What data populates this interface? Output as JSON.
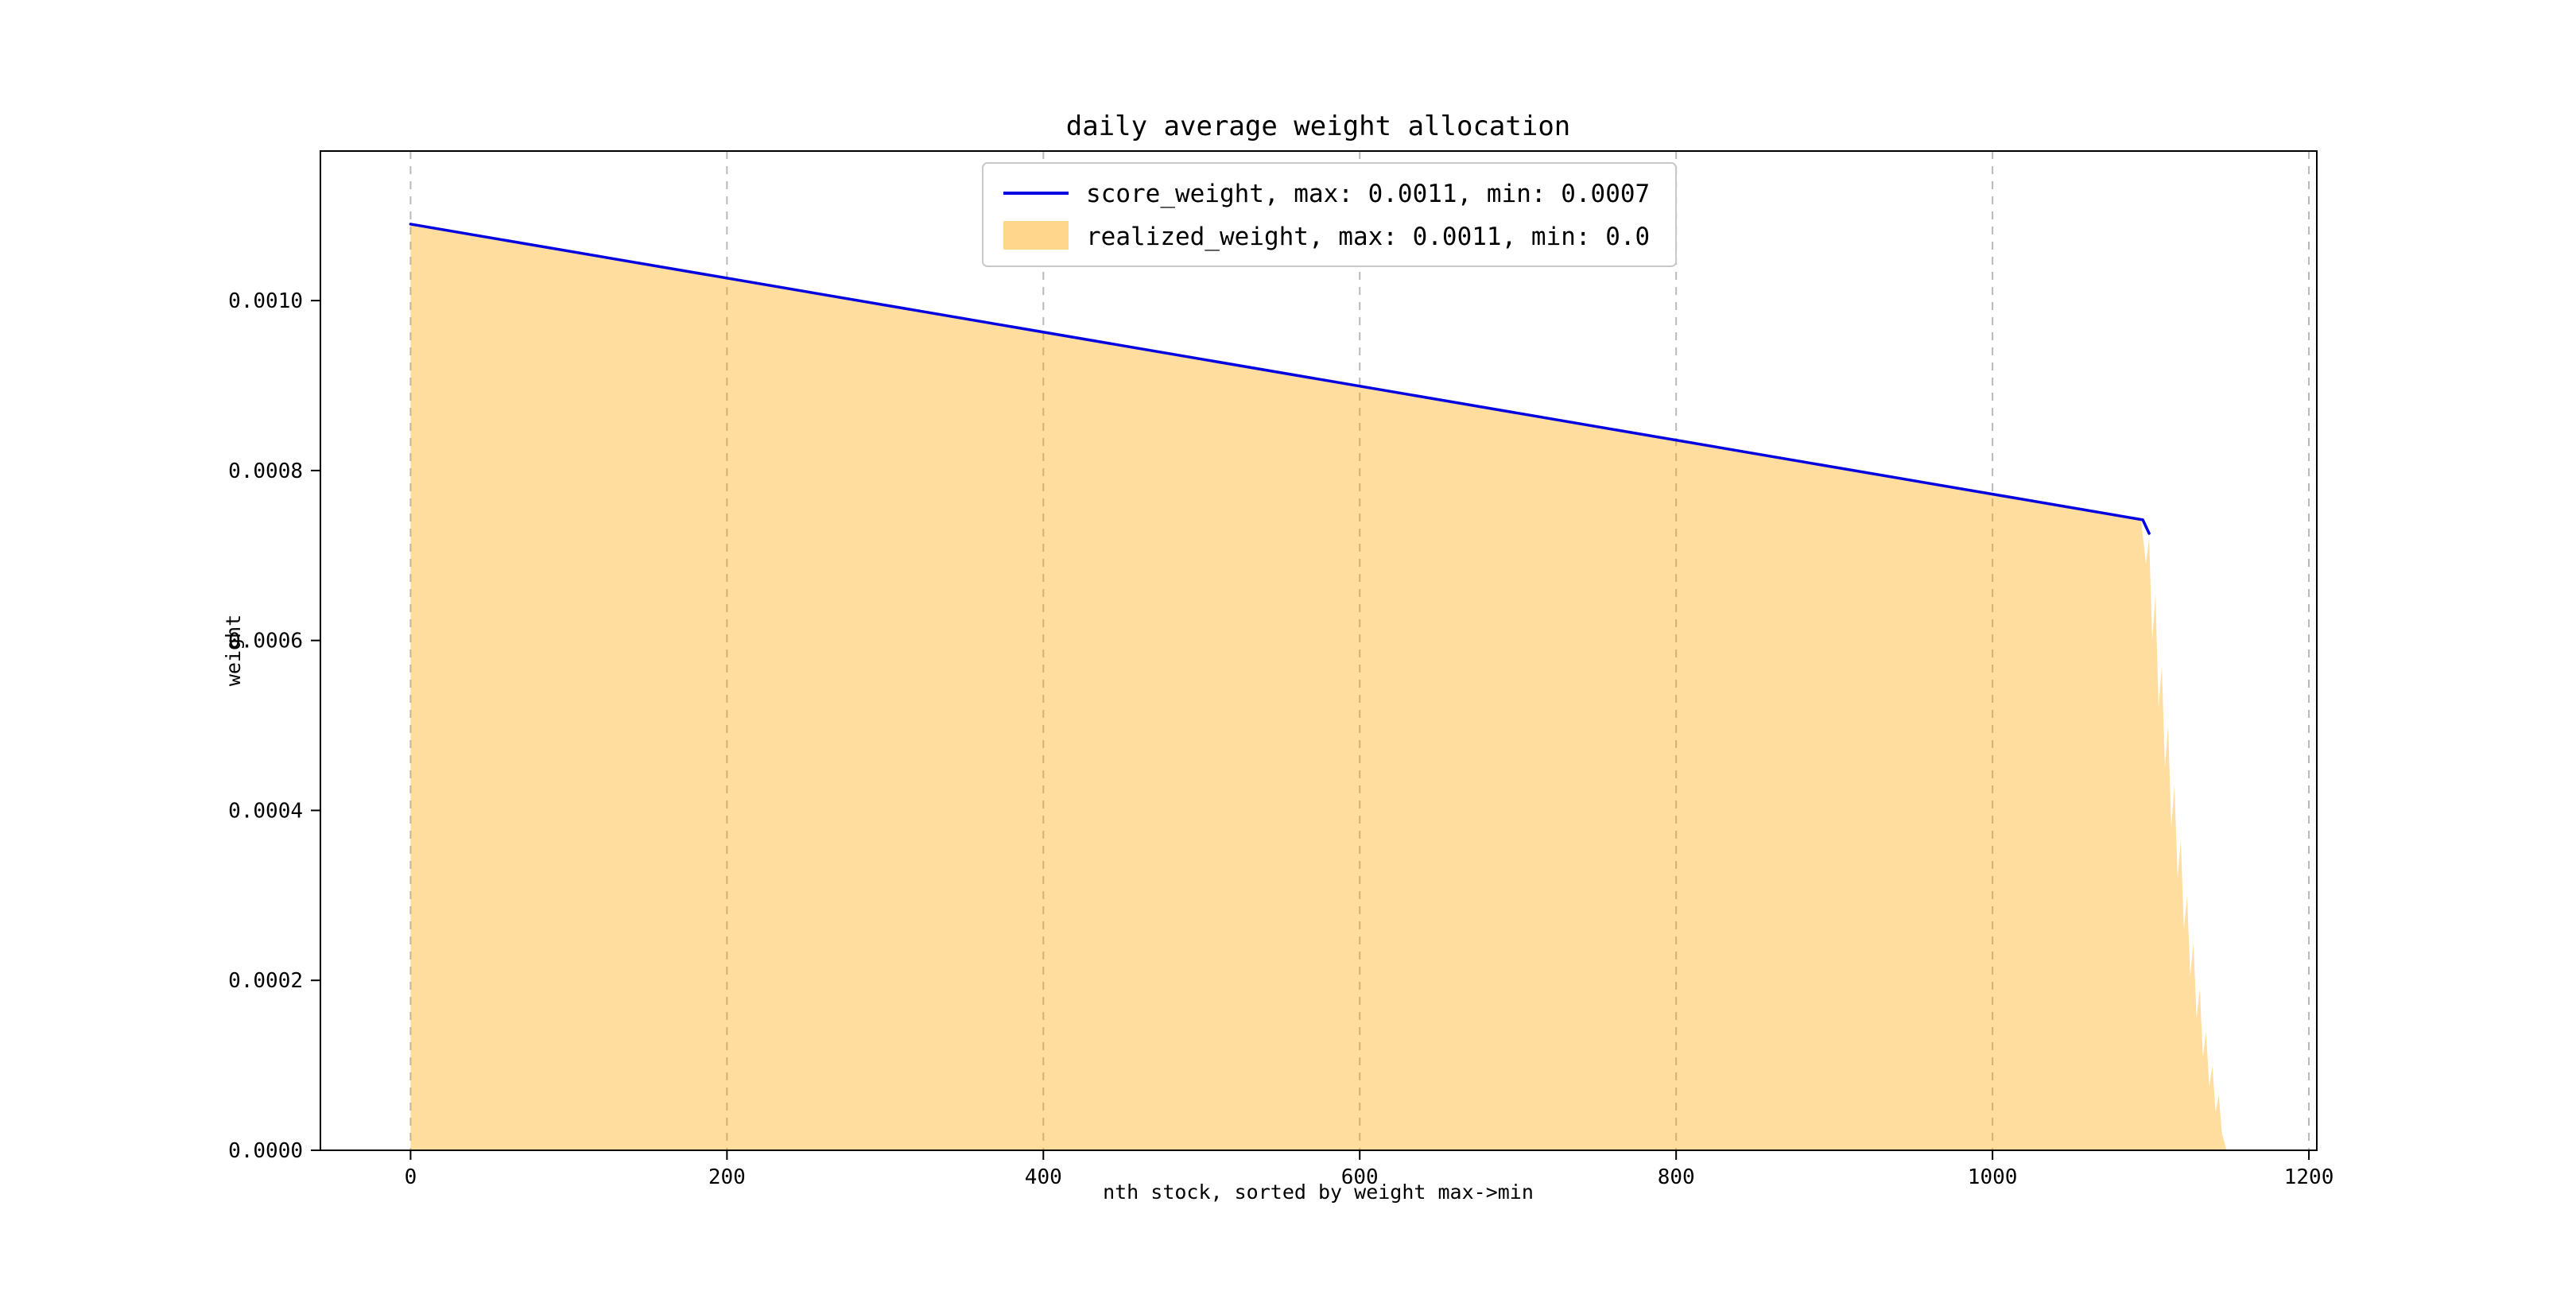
{
  "page": {
    "background": "#ffffff"
  },
  "chart_data": {
    "type": "area",
    "title": "daily average weight allocation",
    "xlabel": "nth stock, sorted by weight max->min",
    "ylabel": "weight",
    "xlim": [
      -57,
      1205
    ],
    "ylim": [
      0,
      0.001176
    ],
    "grid": "vertical-dashed",
    "grid_color": "#b9b9b9",
    "legend_position": "upper center",
    "x_ticks": [
      0,
      200,
      400,
      600,
      800,
      1000,
      1200
    ],
    "x_tick_labels": [
      "0",
      "200",
      "400",
      "600",
      "800",
      "1000",
      "1200"
    ],
    "y_ticks": [
      0,
      0.0002,
      0.0004,
      0.0006,
      0.0008,
      0.001
    ],
    "y_tick_labels": [
      "0.0000",
      "0.0002",
      "0.0004",
      "0.0006",
      "0.0008",
      "0.0010"
    ],
    "legend_entries": [
      {
        "label": "score_weight, max: 0.0011, min: 0.0007",
        "swatch": "line"
      },
      {
        "label": "realized_weight, max: 0.0011, min: 0.0",
        "swatch": "patch"
      }
    ],
    "series": [
      {
        "name": "score_weight",
        "type": "line",
        "color": "#0000e0",
        "max": 0.0011,
        "min": 0.0007,
        "points": [
          [
            0,
            0.00109
          ],
          [
            1095,
            0.000742
          ],
          [
            1099,
            0.000726
          ]
        ]
      },
      {
        "name": "realized_weight",
        "type": "area",
        "color": "#ffa500",
        "fill_opacity": 0.38,
        "max": 0.0011,
        "min": 0.0,
        "points": [
          [
            0,
            0.00109
          ],
          [
            50,
            0.001074
          ],
          [
            100,
            0.001058
          ],
          [
            150,
            0.001043
          ],
          [
            200,
            0.001027
          ],
          [
            250,
            0.001011
          ],
          [
            300,
            0.000995
          ],
          [
            350,
            0.000979
          ],
          [
            400,
            0.000963
          ],
          [
            450,
            0.000948
          ],
          [
            500,
            0.000932
          ],
          [
            550,
            0.000916
          ],
          [
            600,
            0.0009
          ],
          [
            650,
            0.000884
          ],
          [
            700,
            0.000869
          ],
          [
            750,
            0.000853
          ],
          [
            800,
            0.000837
          ],
          [
            850,
            0.000821
          ],
          [
            900,
            0.000805
          ],
          [
            950,
            0.000789
          ],
          [
            1000,
            0.000774
          ],
          [
            1050,
            0.000758
          ],
          [
            1090,
            0.000745
          ],
          [
            1094,
            0.00074
          ],
          [
            1097,
            0.00069
          ],
          [
            1099,
            0.00072
          ],
          [
            1101,
            0.0006
          ],
          [
            1103,
            0.000655
          ],
          [
            1105,
            0.00052
          ],
          [
            1107,
            0.00057
          ],
          [
            1109,
            0.00045
          ],
          [
            1111,
            0.0005
          ],
          [
            1113,
            0.00038
          ],
          [
            1115,
            0.00043
          ],
          [
            1117,
            0.00032
          ],
          [
            1119,
            0.000365
          ],
          [
            1121,
            0.00026
          ],
          [
            1123,
            0.0003
          ],
          [
            1125,
            0.000205
          ],
          [
            1127,
            0.000245
          ],
          [
            1129,
            0.000155
          ],
          [
            1131,
            0.00019
          ],
          [
            1133,
            0.00011
          ],
          [
            1135,
            0.00014
          ],
          [
            1137,
            7.5e-05
          ],
          [
            1139,
            0.0001
          ],
          [
            1141,
            4.5e-05
          ],
          [
            1143,
            6.5e-05
          ],
          [
            1145,
            2e-05
          ],
          [
            1148,
            0.0
          ]
        ]
      }
    ]
  }
}
